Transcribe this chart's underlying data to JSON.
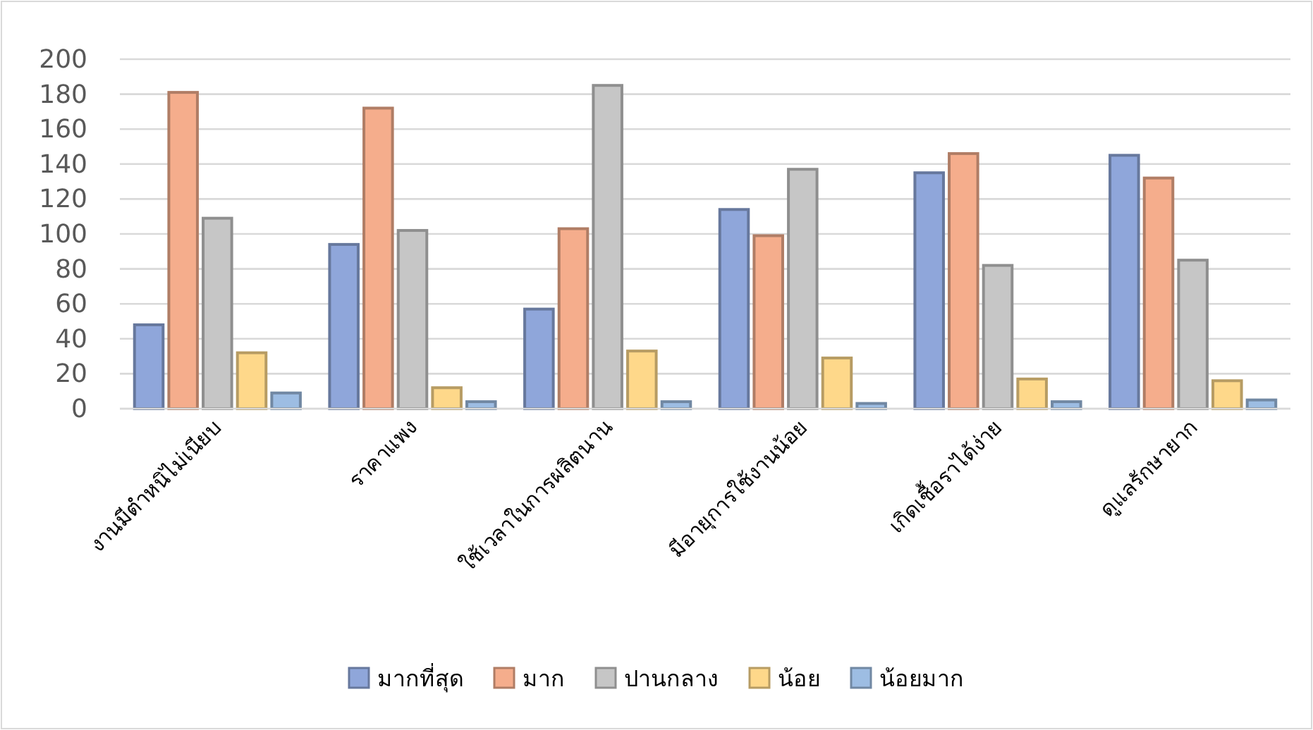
{
  "chart_data": {
    "type": "bar",
    "categories": [
      "งานมีตำหนิไม่เนียบ",
      "ราคาแพง",
      "ใช้เวลาในการผลิตนาน",
      "มีอายุการใช้งานน้อย",
      "เกิดเชื้อราได้ง่าย",
      "ดูแลรักษายาก"
    ],
    "series": [
      {
        "name": "มากที่สุด",
        "color": "#8fa6da",
        "values": [
          48,
          94,
          57,
          114,
          135,
          145
        ]
      },
      {
        "name": "มาก",
        "color": "#f5ad8c",
        "values": [
          181,
          172,
          103,
          99,
          146,
          132
        ]
      },
      {
        "name": "ปานกลาง",
        "color": "#c6c6c6",
        "values": [
          109,
          102,
          185,
          137,
          82,
          85
        ]
      },
      {
        "name": "น้อย",
        "color": "#fed88a",
        "values": [
          32,
          12,
          33,
          29,
          17,
          16
        ]
      },
      {
        "name": "น้อยมาก",
        "color": "#9dbde3",
        "values": [
          9,
          4,
          4,
          3,
          4,
          5
        ]
      }
    ],
    "ylim": [
      0,
      200
    ],
    "yticks": [
      0,
      20,
      40,
      60,
      80,
      100,
      120,
      140,
      160,
      180,
      200
    ],
    "grid": "y",
    "legend": "bottom"
  }
}
